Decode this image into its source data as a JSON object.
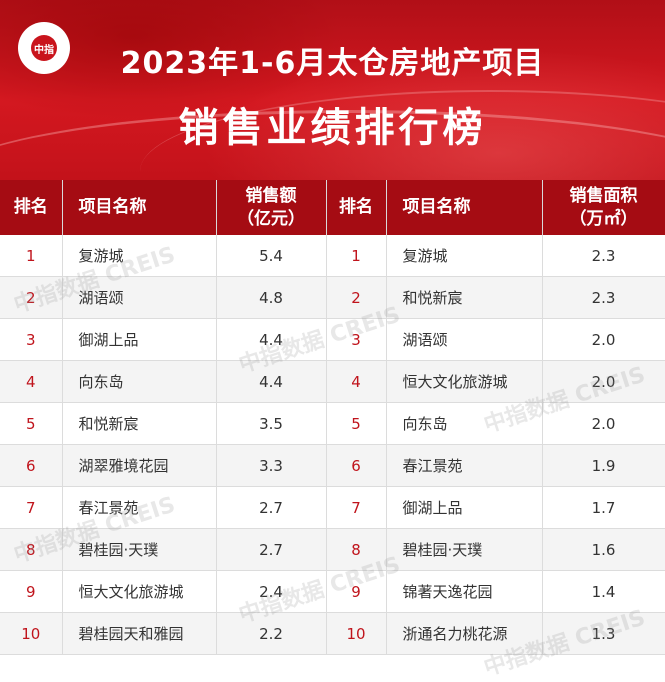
{
  "header": {
    "logo_text": "中指",
    "title_line1": "2023年1-6月太仓房地产项目",
    "title_line2": "销售业绩排行榜"
  },
  "left_table": {
    "col_rank": "排名",
    "col_name": "项目名称",
    "col_value_line1": "销售额",
    "col_value_line2": "（亿元）",
    "rows": [
      {
        "rank": "1",
        "name": "复游城",
        "value": "5.4"
      },
      {
        "rank": "2",
        "name": "湖语颂",
        "value": "4.8"
      },
      {
        "rank": "3",
        "name": "御湖上品",
        "value": "4.4"
      },
      {
        "rank": "4",
        "name": "向东岛",
        "value": "4.4"
      },
      {
        "rank": "5",
        "name": "和悦新宸",
        "value": "3.5"
      },
      {
        "rank": "6",
        "name": "湖翠雅境花园",
        "value": "3.3"
      },
      {
        "rank": "7",
        "name": "春江景苑",
        "value": "2.7"
      },
      {
        "rank": "8",
        "name": "碧桂园·天璞",
        "value": "2.7"
      },
      {
        "rank": "9",
        "name": "恒大文化旅游城",
        "value": "2.4"
      },
      {
        "rank": "10",
        "name": "碧桂园天和雅园",
        "value": "2.2"
      }
    ]
  },
  "right_table": {
    "col_rank": "排名",
    "col_name": "项目名称",
    "col_value_line1": "销售面积",
    "col_value_line2": "（万㎡）",
    "rows": [
      {
        "rank": "1",
        "name": "复游城",
        "value": "2.3"
      },
      {
        "rank": "2",
        "name": "和悦新宸",
        "value": "2.3"
      },
      {
        "rank": "3",
        "name": "湖语颂",
        "value": "2.0"
      },
      {
        "rank": "4",
        "name": "恒大文化旅游城",
        "value": "2.0"
      },
      {
        "rank": "5",
        "name": "向东岛",
        "value": "2.0"
      },
      {
        "rank": "6",
        "name": "春江景苑",
        "value": "1.9"
      },
      {
        "rank": "7",
        "name": "御湖上品",
        "value": "1.7"
      },
      {
        "rank": "8",
        "name": "碧桂园·天璞",
        "value": "1.6"
      },
      {
        "rank": "9",
        "name": "锦著天逸花园",
        "value": "1.4"
      },
      {
        "rank": "10",
        "name": "浙通名力桃花源",
        "value": "1.3"
      }
    ]
  },
  "watermark_text": "中指数据 CREIS",
  "colors": {
    "header_red": "#c9141c",
    "table_header": "#a50c13",
    "rank_red": "#c0141c"
  }
}
